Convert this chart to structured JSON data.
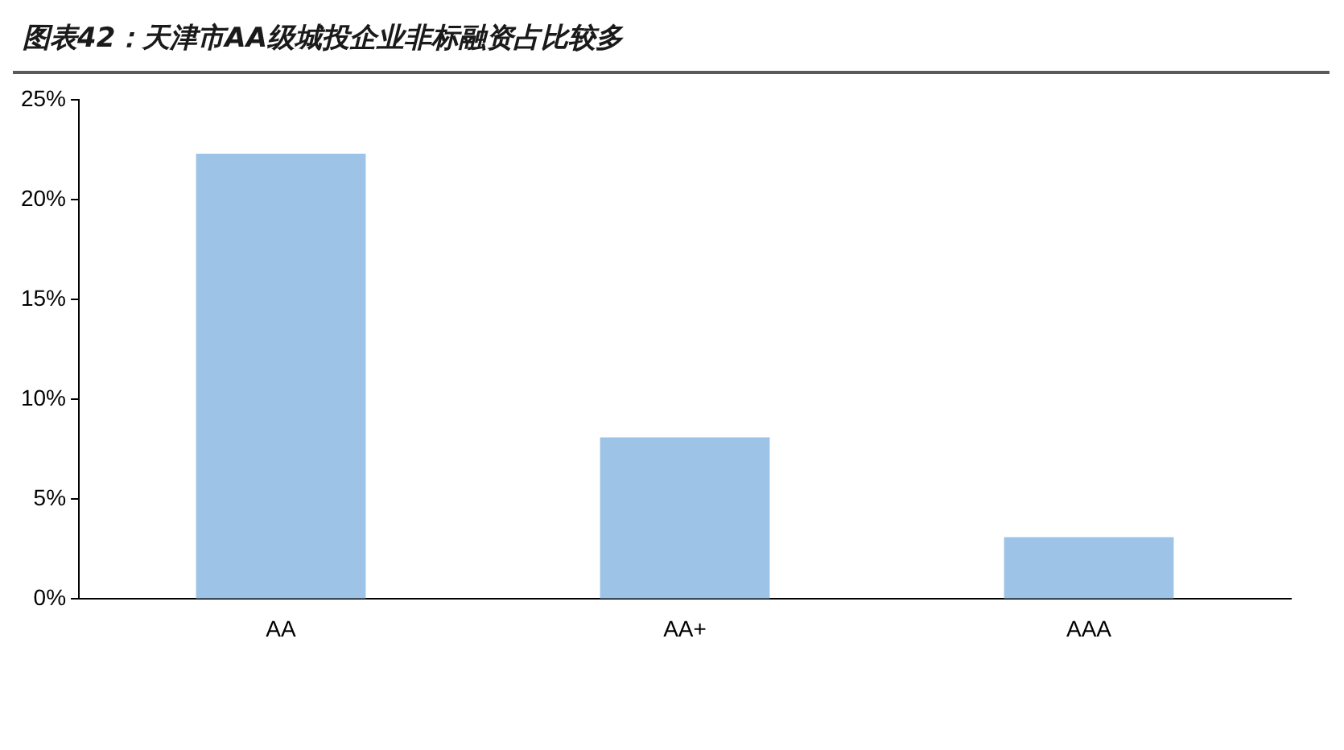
{
  "chart_data": {
    "type": "bar",
    "title": "图表42：天津市AA级城投企业非标融资占比较多",
    "categories": [
      "AA",
      "AA+",
      "AAA"
    ],
    "values": [
      22.3,
      8.1,
      3.1
    ],
    "color": "#9dc3e6",
    "ylim": [
      0,
      25
    ],
    "yticks": [
      {
        "value": 0,
        "label": "0%"
      },
      {
        "value": 5,
        "label": "5%"
      },
      {
        "value": 10,
        "label": "10%"
      },
      {
        "value": 15,
        "label": "15%"
      },
      {
        "value": 20,
        "label": "20%"
      },
      {
        "value": 25,
        "label": "25%"
      }
    ],
    "grid": false,
    "legend": false
  }
}
